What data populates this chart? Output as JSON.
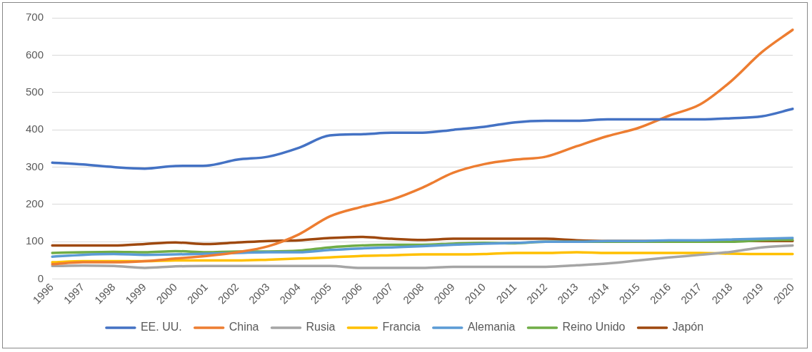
{
  "chart_data": {
    "type": "line",
    "categories": [
      "1996",
      "1997",
      "1998",
      "1999",
      "2000",
      "2001",
      "2002",
      "2003",
      "2004",
      "2005",
      "2006",
      "2007",
      "2008",
      "2009",
      "2010",
      "2011",
      "2012",
      "2013",
      "2014",
      "2015",
      "2016",
      "2017",
      "2018",
      "2019",
      "2020"
    ],
    "series": [
      {
        "name": "EE. UU.",
        "color": "#4472c4",
        "values": [
          312,
          307,
          300,
          296,
          303,
          304,
          320,
          328,
          352,
          385,
          388,
          392,
          392,
          400,
          408,
          420,
          424,
          424,
          428,
          428,
          428,
          428,
          431,
          436,
          456
        ]
      },
      {
        "name": "China",
        "color": "#ed7d31",
        "values": [
          40,
          45,
          45,
          48,
          55,
          62,
          72,
          88,
          120,
          168,
          193,
          213,
          245,
          285,
          308,
          320,
          328,
          356,
          383,
          405,
          438,
          468,
          530,
          608,
          668
        ]
      },
      {
        "name": "Rusia",
        "color": "#a5a5a5",
        "values": [
          35,
          36,
          35,
          30,
          34,
          35,
          35,
          35,
          35,
          35,
          30,
          30,
          30,
          33,
          33,
          33,
          33,
          37,
          42,
          50,
          58,
          65,
          73,
          85,
          90
        ]
      },
      {
        "name": "Francia",
        "color": "#ffc000",
        "values": [
          45,
          48,
          48,
          48,
          50,
          50,
          50,
          52,
          55,
          58,
          62,
          64,
          66,
          66,
          67,
          70,
          70,
          72,
          70,
          70,
          70,
          70,
          68,
          67,
          67
        ]
      },
      {
        "name": "Alemania",
        "color": "#5b9bd5",
        "values": [
          60,
          65,
          67,
          65,
          66,
          68,
          70,
          72,
          72,
          78,
          82,
          85,
          88,
          92,
          95,
          97,
          100,
          100,
          102,
          102,
          104,
          104,
          106,
          108,
          110
        ]
      },
      {
        "name": "Reino Unido",
        "color": "#70ad47",
        "values": [
          70,
          72,
          73,
          72,
          75,
          72,
          74,
          74,
          76,
          85,
          90,
          92,
          92,
          95,
          97,
          96,
          100,
          100,
          100,
          100,
          100,
          100,
          100,
          104,
          105
        ]
      },
      {
        "name": "Japón",
        "color": "#9e480e",
        "values": [
          90,
          90,
          90,
          94,
          98,
          94,
          98,
          102,
          104,
          110,
          113,
          108,
          105,
          108,
          108,
          108,
          108,
          104,
          102,
          102,
          102,
          102,
          102,
          102,
          102
        ]
      }
    ],
    "ylim": [
      0,
      700
    ],
    "yticks": [
      0,
      100,
      200,
      300,
      400,
      500,
      600,
      700
    ],
    "grid": "y",
    "legend": "bottom",
    "marker": "none",
    "line_style": "solid"
  }
}
